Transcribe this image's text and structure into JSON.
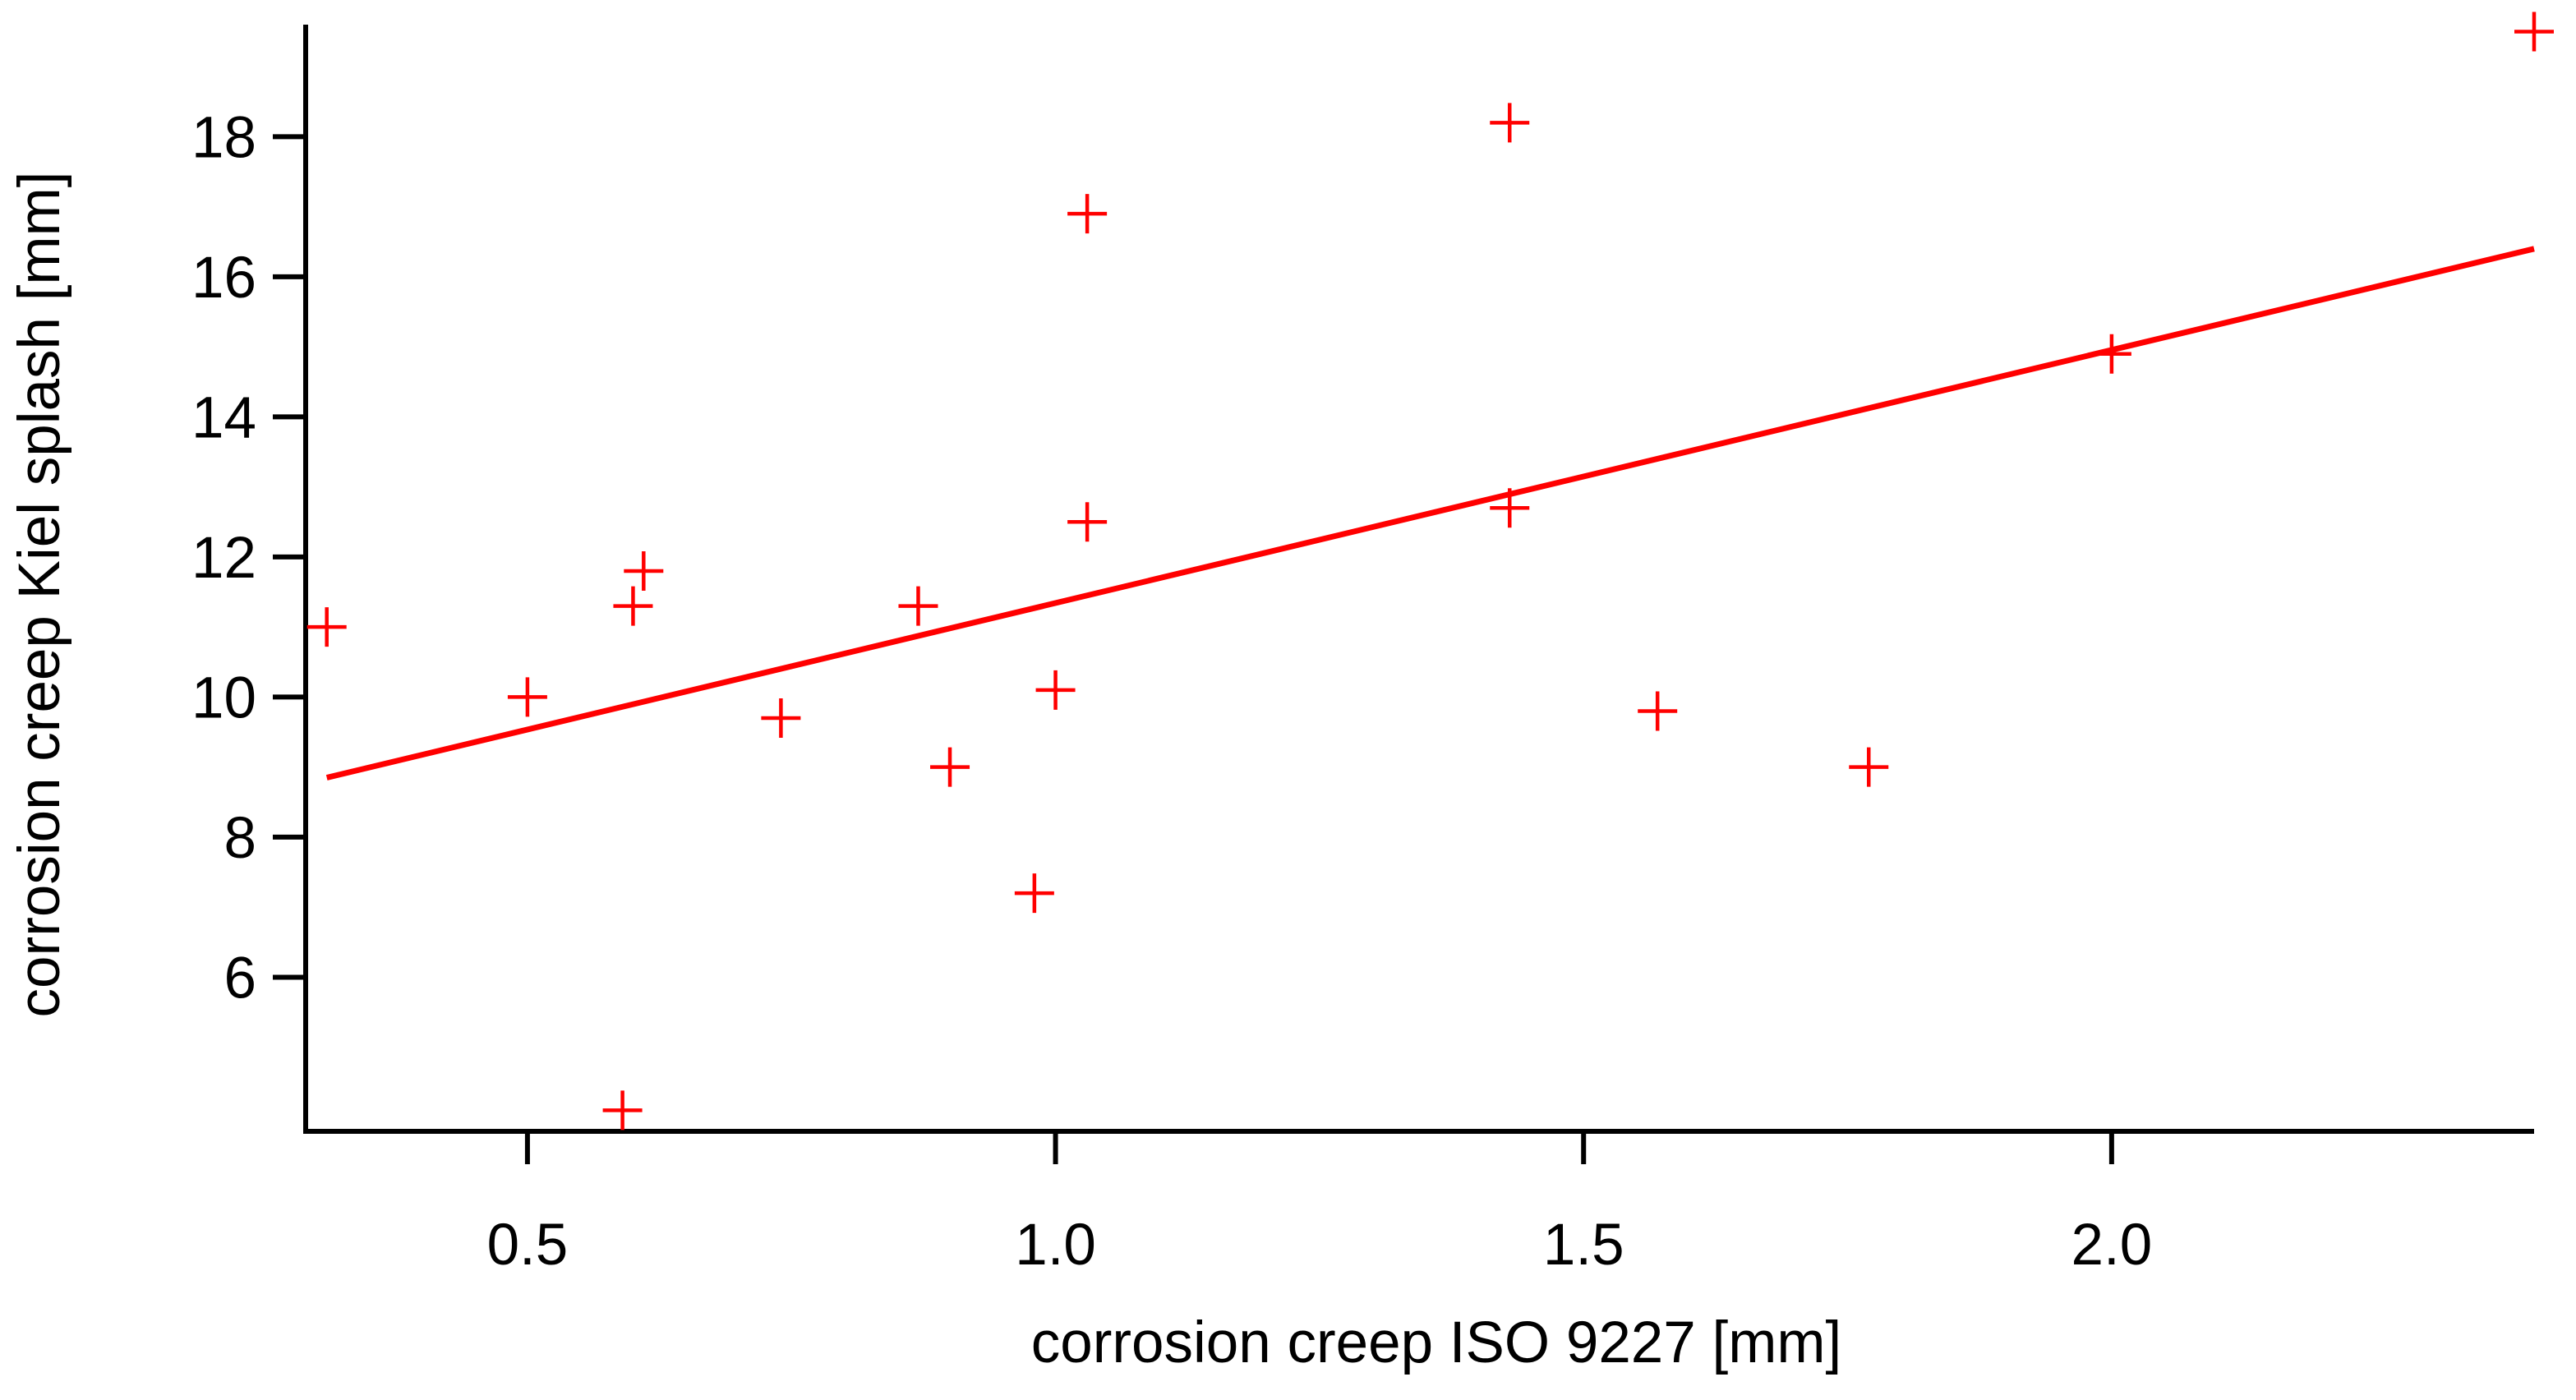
{
  "chart_data": {
    "type": "scatter",
    "title": "",
    "xlabel": "corrosion creep ISO 9227 [mm]",
    "ylabel": "corrosion creep Kiel splash [mm]",
    "xlim": [
      0.29,
      2.4
    ],
    "ylim": [
      3.8,
      19.6
    ],
    "xticks": [
      0.5,
      1.0,
      1.5,
      2.0
    ],
    "xtick_labels": [
      "0.5",
      "1.0",
      "1.5",
      "2.0"
    ],
    "yticks": [
      6,
      8,
      10,
      12,
      14,
      16,
      18
    ],
    "ytick_labels": [
      "6",
      "8",
      "10",
      "12",
      "14",
      "16",
      "18"
    ],
    "grid": false,
    "legend": "none",
    "marker": "plus",
    "color": "#ff0000",
    "series": [
      {
        "points": [
          {
            "x": 0.31,
            "y": 11.0
          },
          {
            "x": 0.5,
            "y": 10.0
          },
          {
            "x": 0.59,
            "y": 4.1
          },
          {
            "x": 0.6,
            "y": 11.3
          },
          {
            "x": 0.61,
            "y": 11.8
          },
          {
            "x": 0.74,
            "y": 9.7
          },
          {
            "x": 0.87,
            "y": 11.3
          },
          {
            "x": 0.9,
            "y": 9.0
          },
          {
            "x": 0.98,
            "y": 7.2
          },
          {
            "x": 1.0,
            "y": 10.1
          },
          {
            "x": 1.03,
            "y": 16.9
          },
          {
            "x": 1.03,
            "y": 12.5
          },
          {
            "x": 1.43,
            "y": 18.2
          },
          {
            "x": 1.43,
            "y": 12.7
          },
          {
            "x": 1.57,
            "y": 9.8
          },
          {
            "x": 1.77,
            "y": 9.0
          },
          {
            "x": 2.0,
            "y": 14.9
          },
          {
            "x": 2.4,
            "y": 19.5
          }
        ]
      }
    ],
    "fit_line": {
      "type": "linear",
      "x_start": 0.31,
      "y_start": 8.85,
      "x_end": 2.4,
      "y_end": 16.4
    }
  }
}
